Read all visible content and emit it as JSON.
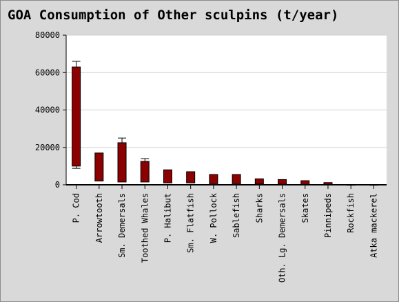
{
  "colors": {
    "background": "#d9d9d9",
    "plot_background": "#ffffff",
    "bar_fill": "#8b0000",
    "bar_stroke": "#000000",
    "grid": "#d0d0d0"
  },
  "chart_data": {
    "type": "bar",
    "title": "GOA Consumption of Other sculpins (t/year)",
    "xlabel": "",
    "ylabel": "",
    "ylim": [
      0,
      80000
    ],
    "yticks": [
      0,
      20000,
      40000,
      60000,
      80000
    ],
    "grid": true,
    "bar_style": "floating range with error whiskers",
    "categories": [
      "P. Cod",
      "Arrowtooth",
      "Sm. Demersals",
      "Toothed Whales",
      "P. Halibut",
      "Sm. Flatfish",
      "W. Pollock",
      "Sablefish",
      "Sharks",
      "Oth. Lg. Demersals",
      "Skates",
      "Pinnipeds",
      "Rockfish",
      "Atka mackerel"
    ],
    "low": [
      10000,
      2000,
      1500,
      1500,
      1000,
      1000,
      600,
      600,
      400,
      300,
      200,
      100,
      0,
      0
    ],
    "high": [
      63000,
      17000,
      22500,
      12500,
      8000,
      7000,
      5500,
      5500,
      3200,
      2800,
      2200,
      1200,
      100,
      100
    ],
    "whisker_low": [
      8800,
      null,
      null,
      null,
      null,
      null,
      null,
      null,
      null,
      null,
      null,
      null,
      null,
      null
    ],
    "whisker_high": [
      66000,
      null,
      25000,
      14000,
      null,
      null,
      null,
      null,
      null,
      null,
      null,
      null,
      null,
      null
    ]
  }
}
